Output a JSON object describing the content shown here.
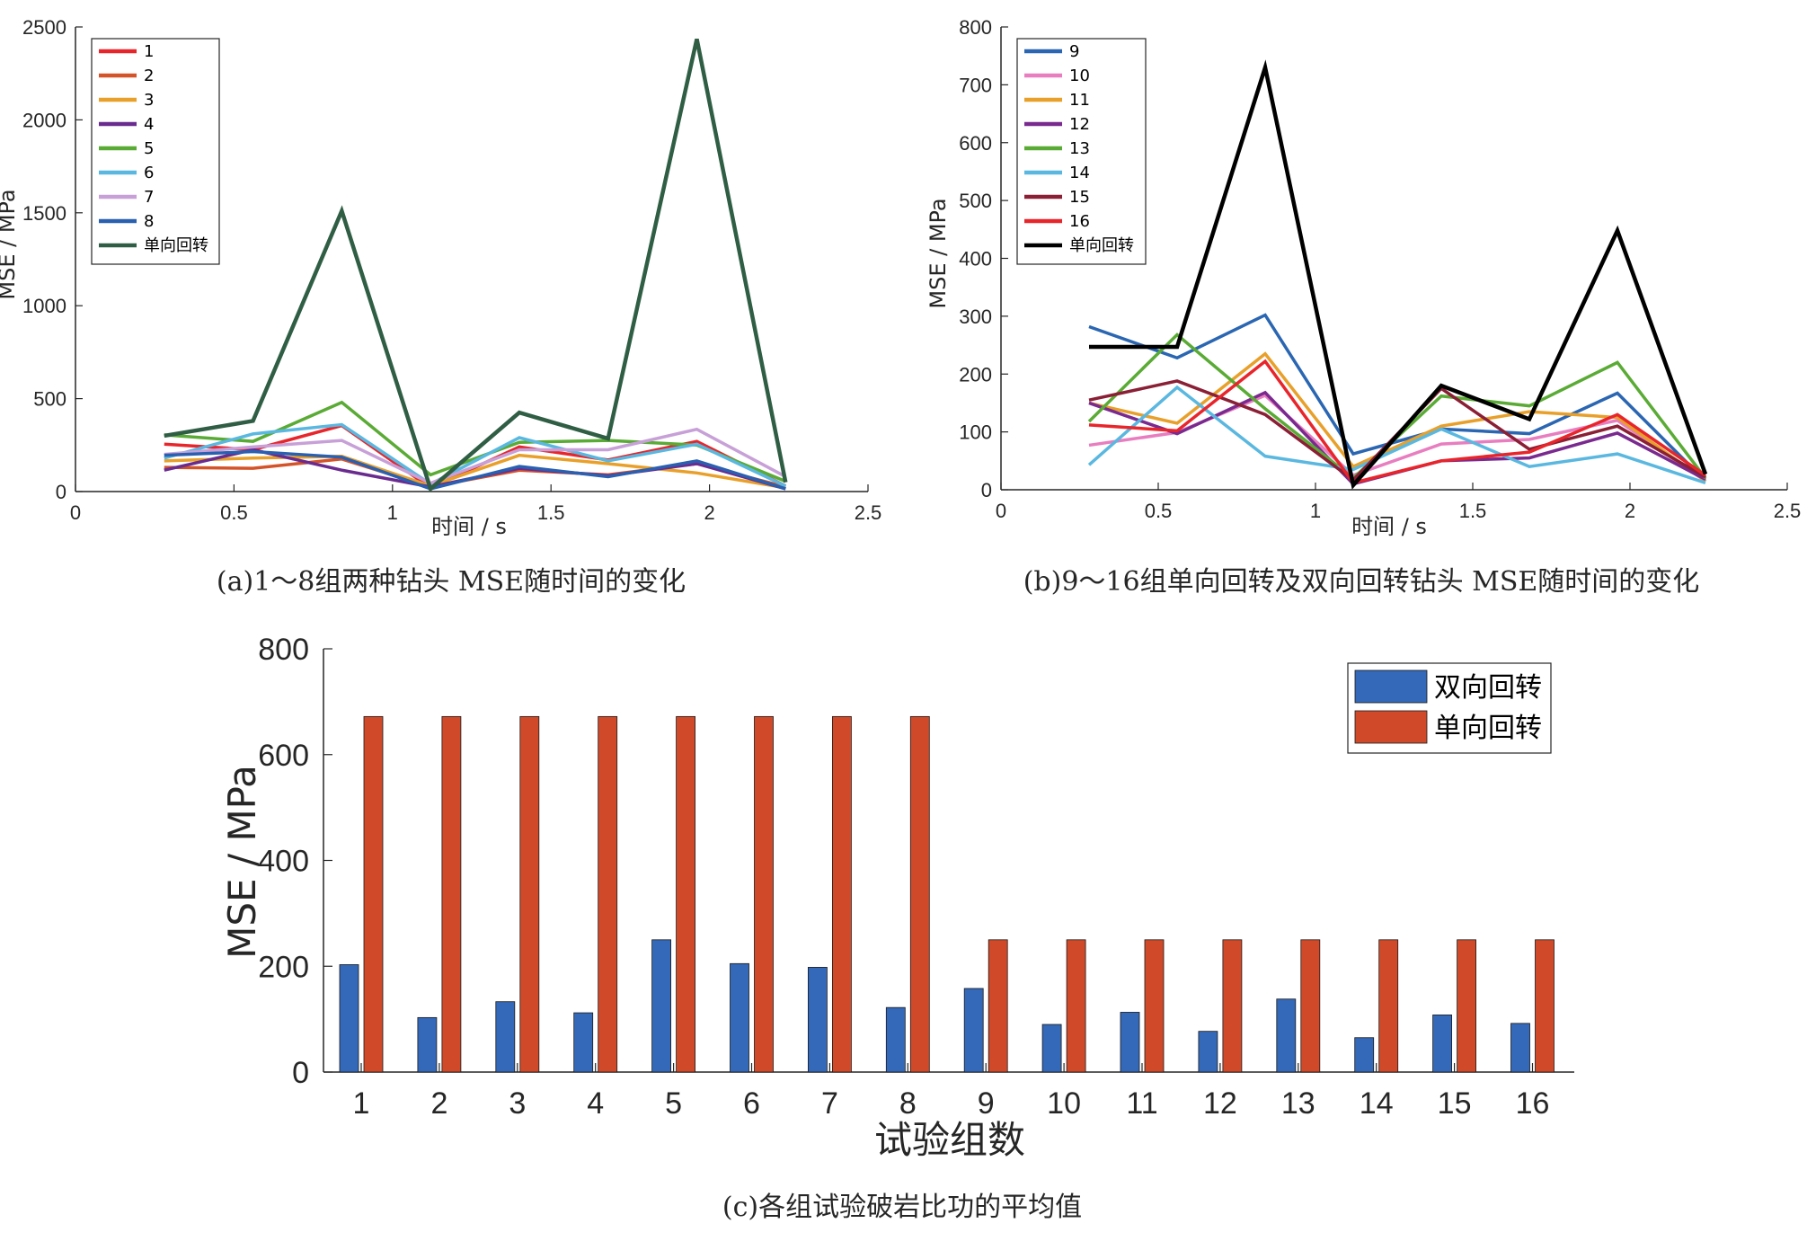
{
  "chart_data": [
    {
      "id": "a",
      "type": "line",
      "caption": "(a)1～8组两种钻头 MSE随时间的变化",
      "xlabel": "时间 / s",
      "ylabel": "MSE / MPa",
      "xlim": [
        0,
        2.5
      ],
      "ylim": [
        0,
        2500
      ],
      "xticks": [
        "0",
        "0.5",
        "1",
        "1.5",
        "2",
        "2.5"
      ],
      "yticks": [
        "0",
        "500",
        "1000",
        "1500",
        "2000",
        "2500"
      ],
      "xtick_values": [
        0,
        0.5,
        1,
        1.5,
        2,
        2.5
      ],
      "ytick_values": [
        0,
        500,
        1000,
        1500,
        2000,
        2500
      ],
      "legend_position": "top-left",
      "x": [
        0.28,
        0.56,
        0.84,
        1.12,
        1.4,
        1.68,
        1.96,
        2.24
      ],
      "series": [
        {
          "name": "1",
          "color": "#e8252b",
          "values": [
            255,
            225,
            355,
            20,
            240,
            170,
            270,
            30
          ]
        },
        {
          "name": "2",
          "color": "#d4542a",
          "values": [
            130,
            125,
            175,
            25,
            115,
            90,
            150,
            25
          ]
        },
        {
          "name": "3",
          "color": "#e8a02a",
          "values": [
            165,
            180,
            190,
            30,
            195,
            150,
            100,
            20
          ]
        },
        {
          "name": "4",
          "color": "#6a2b8f",
          "values": [
            115,
            225,
            115,
            25,
            125,
            85,
            150,
            15
          ]
        },
        {
          "name": "5",
          "color": "#5aab35",
          "values": [
            305,
            270,
            480,
            90,
            265,
            275,
            250,
            55
          ]
        },
        {
          "name": "6",
          "color": "#5ab8e0",
          "values": [
            180,
            310,
            360,
            40,
            290,
            165,
            255,
            30
          ]
        },
        {
          "name": "7",
          "color": "#c8a0d8",
          "values": [
            200,
            240,
            275,
            45,
            225,
            225,
            335,
            80
          ]
        },
        {
          "name": "8",
          "color": "#2a60b0",
          "values": [
            195,
            215,
            185,
            15,
            135,
            80,
            165,
            15
          ]
        },
        {
          "name": "单向回转",
          "color": "#2f5e44",
          "values": [
            300,
            380,
            1510,
            15,
            425,
            285,
            2435,
            50
          ]
        }
      ]
    },
    {
      "id": "b",
      "type": "line",
      "caption": "(b)9～16组单向回转及双向回转钻头 MSE随时间的变化",
      "xlabel": "时间 / s",
      "ylabel": "MSE / MPa",
      "xlim": [
        0,
        2.5
      ],
      "ylim": [
        0,
        800
      ],
      "xticks": [
        "0",
        "0.5",
        "1",
        "1.5",
        "2",
        "2.5"
      ],
      "yticks": [
        "0",
        "100",
        "200",
        "300",
        "400",
        "500",
        "600",
        "700",
        "800"
      ],
      "xtick_values": [
        0,
        0.5,
        1,
        1.5,
        2,
        2.5
      ],
      "ytick_values": [
        0,
        100,
        200,
        300,
        400,
        500,
        600,
        700,
        800
      ],
      "legend_position": "top-left",
      "x": [
        0.28,
        0.56,
        0.84,
        1.12,
        1.4,
        1.68,
        1.96,
        2.24
      ],
      "series": [
        {
          "name": "9",
          "color": "#2a66b2",
          "values": [
            282,
            228,
            302,
            62,
            105,
            97,
            167,
            15
          ]
        },
        {
          "name": "10",
          "color": "#e87ec0",
          "values": [
            77,
            99,
            163,
            25,
            79,
            87,
            120,
            15
          ]
        },
        {
          "name": "11",
          "color": "#e8a02a",
          "values": [
            150,
            115,
            235,
            40,
            110,
            135,
            125,
            15
          ]
        },
        {
          "name": "12",
          "color": "#7a2a8f",
          "values": [
            150,
            97,
            168,
            10,
            50,
            55,
            98,
            18
          ]
        },
        {
          "name": "13",
          "color": "#5aab35",
          "values": [
            118,
            268,
            140,
            20,
            162,
            145,
            220,
            20
          ]
        },
        {
          "name": "14",
          "color": "#5ab8e0",
          "values": [
            43,
            177,
            58,
            35,
            105,
            40,
            62,
            12
          ]
        },
        {
          "name": "15",
          "color": "#8a1f35",
          "values": [
            155,
            188,
            130,
            17,
            175,
            70,
            110,
            22
          ]
        },
        {
          "name": "16",
          "color": "#e8252b",
          "values": [
            112,
            102,
            222,
            12,
            50,
            65,
            130,
            25
          ]
        },
        {
          "name": "单向回转",
          "color": "#000000",
          "values": [
            247,
            247,
            730,
            8,
            180,
            122,
            448,
            27
          ]
        }
      ]
    },
    {
      "id": "c",
      "type": "bar",
      "caption": "(c)各组试验破岩比功的平均值",
      "xlabel": "试验组数",
      "ylabel": "MSE / MPa",
      "ylim": [
        0,
        800
      ],
      "yticks": [
        "0",
        "200",
        "400",
        "600",
        "800"
      ],
      "ytick_values": [
        0,
        200,
        400,
        600,
        800
      ],
      "legend_position": "top-right",
      "categories": [
        "1",
        "2",
        "3",
        "4",
        "5",
        "6",
        "7",
        "8",
        "9",
        "10",
        "11",
        "12",
        "13",
        "14",
        "15",
        "16"
      ],
      "series": [
        {
          "name": "双向回转",
          "color": "#3468b8",
          "values": [
            203,
            103,
            133,
            112,
            250,
            205,
            198,
            122,
            158,
            90,
            113,
            77,
            138,
            65,
            108,
            92
          ]
        },
        {
          "name": "单向回转",
          "color": "#d04a2a",
          "values": [
            672,
            672,
            672,
            672,
            672,
            672,
            672,
            672,
            250,
            250,
            250,
            250,
            250,
            250,
            250,
            250
          ]
        }
      ]
    }
  ]
}
